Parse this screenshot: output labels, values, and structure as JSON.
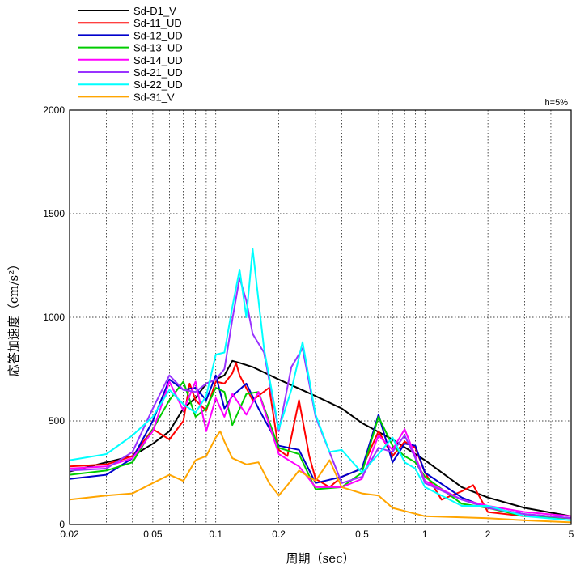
{
  "chart_data": {
    "type": "line",
    "title": "",
    "annotation": "h=5%",
    "xlabel": "周期（sec）",
    "ylabel": "応答加速度（cm/s²）",
    "x_scale": "log",
    "xlim": [
      0.02,
      5
    ],
    "ylim": [
      0,
      2000
    ],
    "x_tick_labels": [
      "0.02",
      "0.05",
      "0.1",
      "0.2",
      "0.5",
      "1",
      "2",
      "5"
    ],
    "x_ticks": [
      0.02,
      0.05,
      0.1,
      0.2,
      0.5,
      1,
      2,
      5
    ],
    "y_ticks": [
      0,
      500,
      1000,
      1500,
      2000
    ],
    "y_tick_labels": [
      "0",
      "500",
      "1000",
      "1500",
      "2000"
    ],
    "grid": true,
    "legend_position": "top-left, above plot",
    "series": [
      {
        "name": "Sd-D1_V",
        "color": "#000000",
        "x": [
          0.02,
          0.03,
          0.04,
          0.05,
          0.06,
          0.07,
          0.08,
          0.09,
          0.1,
          0.11,
          0.12,
          0.13,
          0.15,
          0.2,
          0.3,
          0.4,
          0.5,
          0.7,
          1,
          1.5,
          2,
          3,
          5
        ],
        "y": [
          255,
          300,
          330,
          390,
          450,
          560,
          610,
          680,
          700,
          720,
          790,
          780,
          760,
          700,
          620,
          560,
          490,
          410,
          310,
          180,
          130,
          80,
          40
        ]
      },
      {
        "name": "Sd-11_UD",
        "color": "#ff0000",
        "x": [
          0.02,
          0.03,
          0.04,
          0.05,
          0.06,
          0.07,
          0.075,
          0.08,
          0.09,
          0.1,
          0.11,
          0.12,
          0.125,
          0.13,
          0.15,
          0.18,
          0.2,
          0.22,
          0.25,
          0.28,
          0.3,
          0.35,
          0.4,
          0.5,
          0.6,
          0.7,
          0.8,
          0.9,
          1,
          1.2,
          1.5,
          1.7,
          2,
          3,
          5
        ],
        "y": [
          280,
          290,
          330,
          460,
          410,
          500,
          680,
          600,
          550,
          690,
          680,
          730,
          780,
          720,
          600,
          660,
          360,
          330,
          600,
          330,
          220,
          180,
          230,
          270,
          450,
          330,
          400,
          370,
          250,
          120,
          160,
          190,
          60,
          40,
          30
        ]
      },
      {
        "name": "Sd-12_UD",
        "color": "#0000cc",
        "x": [
          0.02,
          0.03,
          0.04,
          0.05,
          0.06,
          0.07,
          0.08,
          0.09,
          0.1,
          0.11,
          0.12,
          0.14,
          0.16,
          0.2,
          0.25,
          0.3,
          0.4,
          0.5,
          0.6,
          0.7,
          0.8,
          0.9,
          1,
          1.5,
          2,
          3,
          5
        ],
        "y": [
          220,
          240,
          320,
          500,
          700,
          650,
          660,
          600,
          720,
          560,
          620,
          680,
          560,
          380,
          360,
          200,
          230,
          270,
          530,
          300,
          390,
          380,
          250,
          130,
          80,
          50,
          30
        ]
      },
      {
        "name": "Sd-13_UD",
        "color": "#00cc00",
        "x": [
          0.02,
          0.03,
          0.04,
          0.05,
          0.06,
          0.07,
          0.08,
          0.09,
          0.1,
          0.11,
          0.12,
          0.14,
          0.16,
          0.2,
          0.25,
          0.3,
          0.4,
          0.5,
          0.6,
          0.7,
          0.8,
          0.9,
          1,
          1.5,
          2,
          3,
          5
        ],
        "y": [
          240,
          260,
          300,
          460,
          600,
          690,
          520,
          560,
          660,
          640,
          480,
          630,
          640,
          370,
          340,
          170,
          180,
          250,
          520,
          380,
          330,
          300,
          230,
          100,
          80,
          40,
          30
        ]
      },
      {
        "name": "Sd-14_UD",
        "color": "#ff00ff",
        "x": [
          0.02,
          0.03,
          0.04,
          0.05,
          0.06,
          0.07,
          0.08,
          0.09,
          0.1,
          0.11,
          0.12,
          0.14,
          0.16,
          0.2,
          0.25,
          0.3,
          0.4,
          0.5,
          0.6,
          0.7,
          0.8,
          0.9,
          1,
          1.5,
          2,
          3,
          5
        ],
        "y": [
          270,
          280,
          320,
          450,
          690,
          550,
          690,
          450,
          610,
          520,
          630,
          530,
          640,
          340,
          280,
          180,
          180,
          220,
          430,
          360,
          460,
          330,
          210,
          120,
          90,
          60,
          40
        ]
      },
      {
        "name": "Sd-21_UD",
        "color": "#9933ff",
        "x": [
          0.02,
          0.03,
          0.04,
          0.05,
          0.06,
          0.07,
          0.08,
          0.09,
          0.1,
          0.11,
          0.12,
          0.13,
          0.14,
          0.15,
          0.17,
          0.2,
          0.23,
          0.26,
          0.3,
          0.4,
          0.5,
          0.6,
          0.7,
          0.8,
          0.9,
          1,
          1.5,
          2,
          3,
          5
        ],
        "y": [
          260,
          270,
          350,
          560,
          720,
          650,
          640,
          680,
          700,
          750,
          990,
          1190,
          1080,
          920,
          830,
          450,
          760,
          850,
          520,
          200,
          230,
          370,
          350,
          430,
          320,
          200,
          120,
          80,
          50,
          30
        ]
      },
      {
        "name": "Sd-22_UD",
        "color": "#00ffff",
        "x": [
          0.02,
          0.03,
          0.04,
          0.05,
          0.06,
          0.07,
          0.08,
          0.09,
          0.1,
          0.11,
          0.12,
          0.13,
          0.14,
          0.15,
          0.17,
          0.2,
          0.23,
          0.26,
          0.3,
          0.35,
          0.4,
          0.5,
          0.6,
          0.7,
          0.8,
          0.9,
          1,
          1.5,
          2,
          3,
          5
        ],
        "y": [
          310,
          340,
          430,
          520,
          650,
          580,
          540,
          620,
          820,
          830,
          1050,
          1230,
          1000,
          1330,
          850,
          460,
          650,
          880,
          530,
          350,
          360,
          250,
          340,
          420,
          300,
          270,
          180,
          90,
          90,
          40,
          20
        ]
      },
      {
        "name": "Sd-31_V",
        "color": "#ffa500",
        "x": [
          0.02,
          0.03,
          0.04,
          0.05,
          0.06,
          0.07,
          0.08,
          0.09,
          0.1,
          0.105,
          0.11,
          0.12,
          0.14,
          0.16,
          0.18,
          0.2,
          0.22,
          0.25,
          0.3,
          0.35,
          0.4,
          0.5,
          0.6,
          0.7,
          1,
          2,
          3,
          5
        ],
        "y": [
          120,
          140,
          150,
          200,
          240,
          210,
          310,
          330,
          420,
          450,
          400,
          320,
          290,
          300,
          200,
          140,
          190,
          260,
          210,
          310,
          180,
          150,
          140,
          80,
          40,
          30,
          20,
          10
        ]
      }
    ]
  }
}
